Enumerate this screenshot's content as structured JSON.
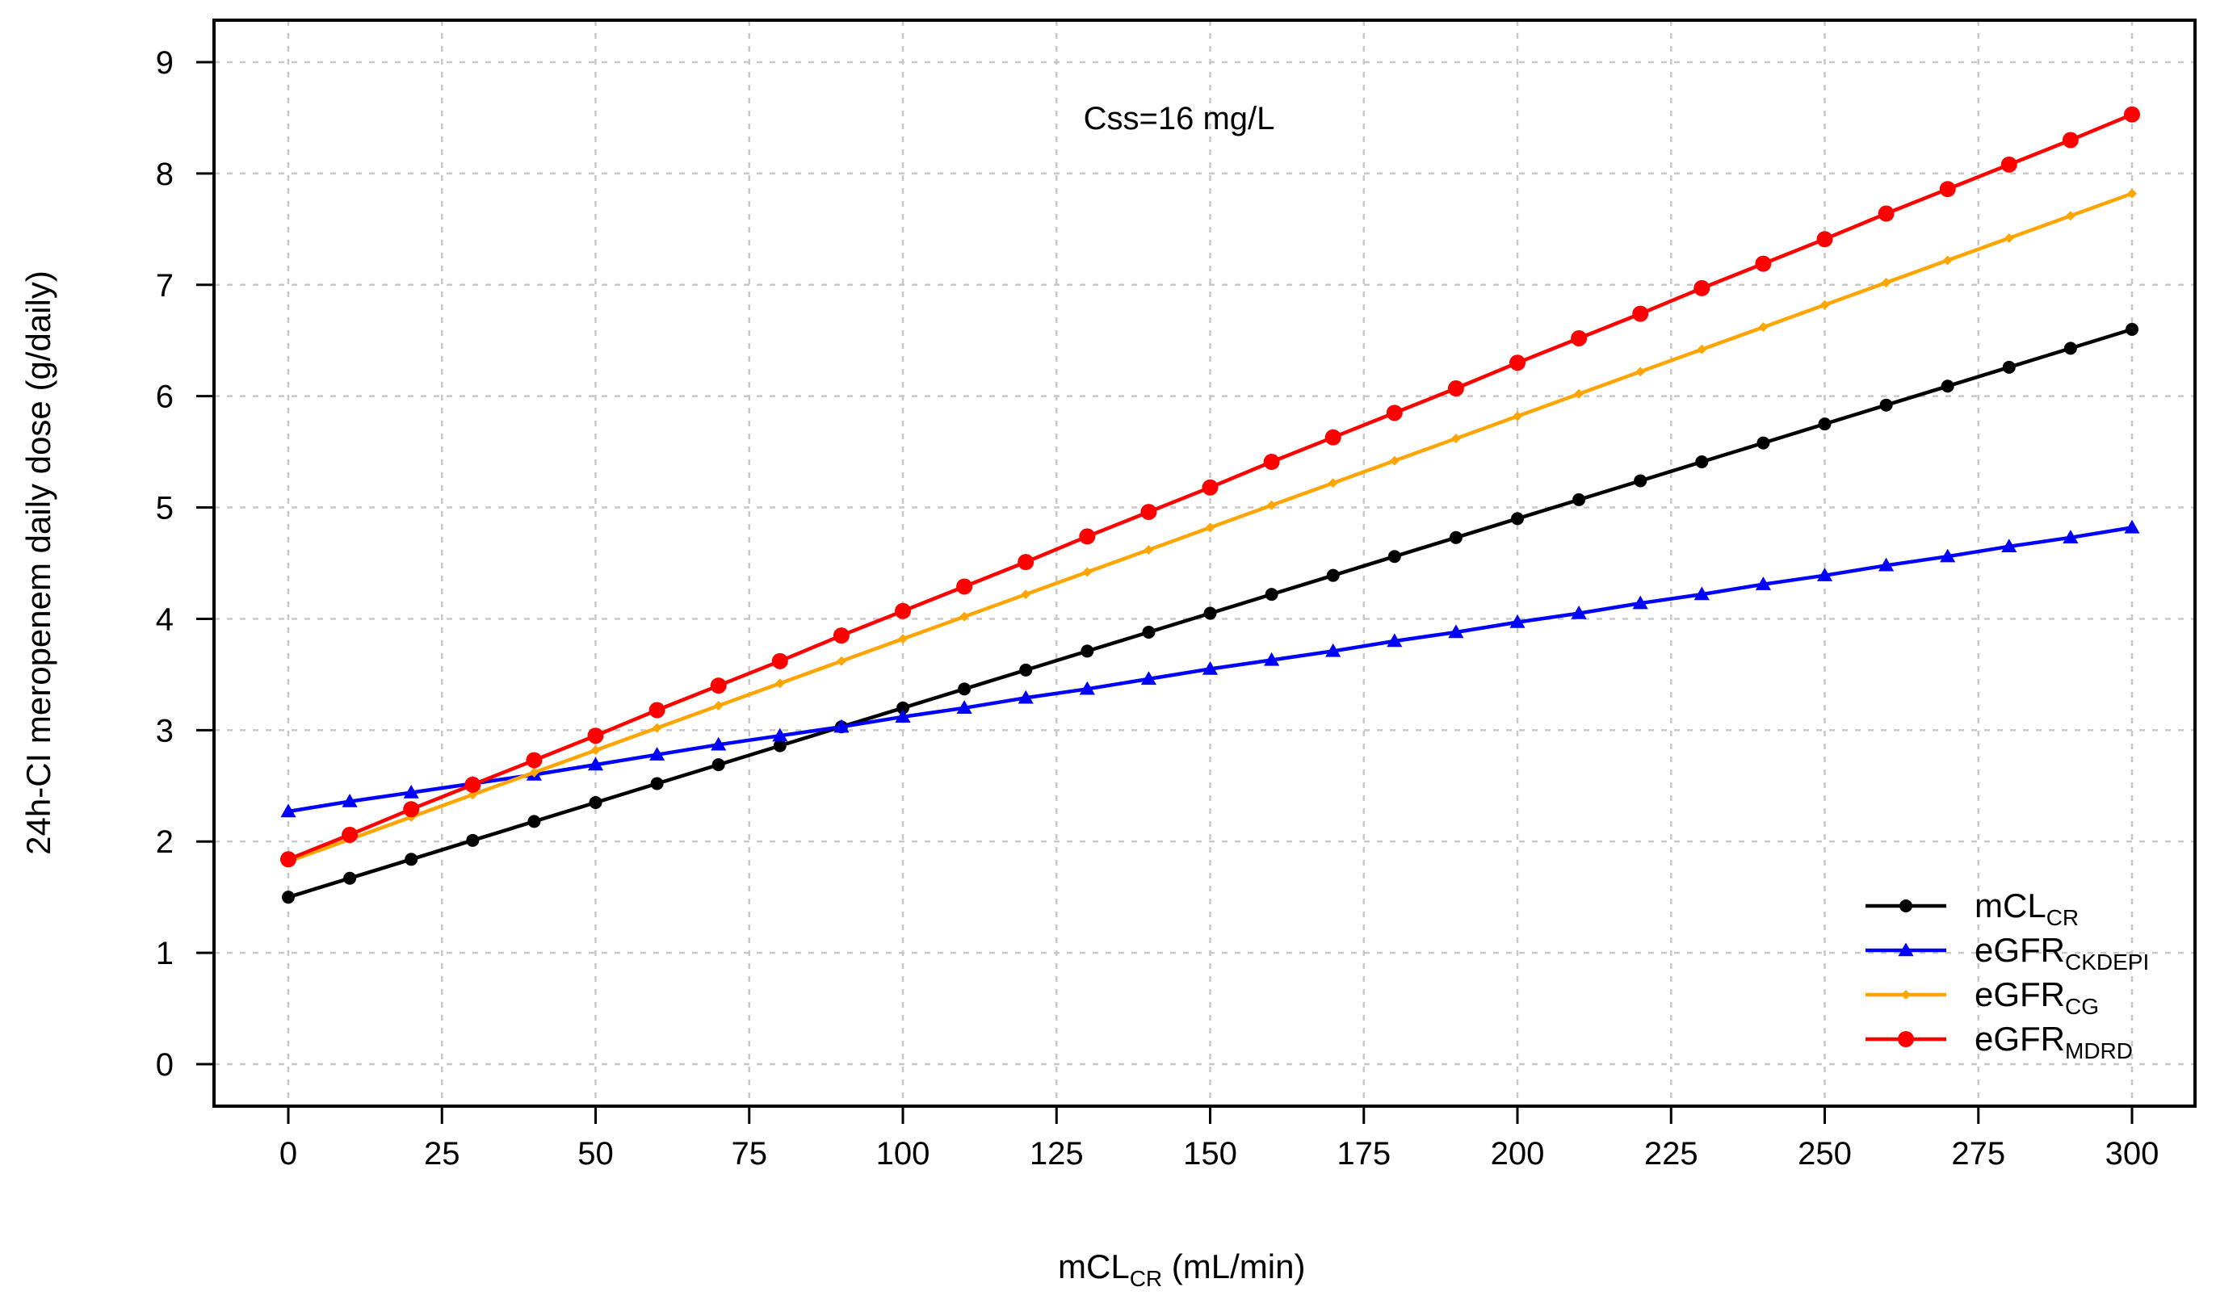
{
  "chart_data": {
    "type": "line",
    "title": "",
    "annotation": "Css=16 mg/L",
    "xlabel": {
      "main": "mCL",
      "sub": "CR",
      "suffix": " (mL/min)"
    },
    "ylabel": "24h-CI meropenem daily dose (g/daily)",
    "xlim": [
      0,
      300
    ],
    "ylim": [
      0,
      9
    ],
    "xticks": [
      0,
      25,
      50,
      75,
      100,
      125,
      150,
      175,
      200,
      225,
      250,
      275,
      300
    ],
    "yticks": [
      0,
      1,
      2,
      3,
      4,
      5,
      6,
      7,
      8,
      9
    ],
    "grid": true,
    "legend_position": "bottom-right",
    "x": [
      0,
      10,
      20,
      30,
      40,
      50,
      60,
      70,
      80,
      90,
      100,
      110,
      120,
      130,
      140,
      150,
      160,
      170,
      180,
      190,
      200,
      210,
      220,
      230,
      240,
      250,
      260,
      270,
      280,
      290,
      300
    ],
    "series": [
      {
        "name": "mCL",
        "name_sub": "CR",
        "color": "#000000",
        "marker": "circle",
        "values": [
          1.5,
          1.67,
          1.84,
          2.01,
          2.18,
          2.35,
          2.52,
          2.69,
          2.86,
          3.03,
          3.2,
          3.37,
          3.54,
          3.71,
          3.88,
          4.05,
          4.22,
          4.39,
          4.56,
          4.73,
          4.9,
          5.07,
          5.24,
          5.41,
          5.58,
          5.75,
          5.92,
          6.09,
          6.26,
          6.43,
          6.6
        ]
      },
      {
        "name": "eGFR",
        "name_sub": "CKDEPI",
        "color": "#0000ff",
        "marker": "triangle",
        "values": [
          2.27,
          2.36,
          2.44,
          2.52,
          2.6,
          2.69,
          2.78,
          2.87,
          2.95,
          3.03,
          3.12,
          3.2,
          3.29,
          3.37,
          3.46,
          3.55,
          3.63,
          3.71,
          3.8,
          3.88,
          3.97,
          4.05,
          4.14,
          4.22,
          4.31,
          4.39,
          4.48,
          4.56,
          4.65,
          4.73,
          4.82
        ]
      },
      {
        "name": "eGFR",
        "name_sub": "CG",
        "color": "#ffa500",
        "marker": "diamond",
        "values": [
          1.82,
          2.02,
          2.22,
          2.42,
          2.62,
          2.82,
          3.02,
          3.22,
          3.42,
          3.62,
          3.82,
          4.02,
          4.22,
          4.42,
          4.62,
          4.82,
          5.02,
          5.22,
          5.42,
          5.62,
          5.82,
          6.02,
          6.22,
          6.42,
          6.62,
          6.82,
          7.02,
          7.22,
          7.42,
          7.62,
          7.82
        ]
      },
      {
        "name": "eGFR",
        "name_sub": "MDRD",
        "color": "#ff0000",
        "marker": "circle",
        "values": [
          1.84,
          2.06,
          2.29,
          2.51,
          2.73,
          2.95,
          3.18,
          3.4,
          3.62,
          3.85,
          4.07,
          4.29,
          4.51,
          4.74,
          4.96,
          5.18,
          5.41,
          5.63,
          5.85,
          6.07,
          6.3,
          6.52,
          6.74,
          6.97,
          7.19,
          7.41,
          7.64,
          7.86,
          8.08,
          8.3,
          8.53
        ]
      }
    ]
  }
}
